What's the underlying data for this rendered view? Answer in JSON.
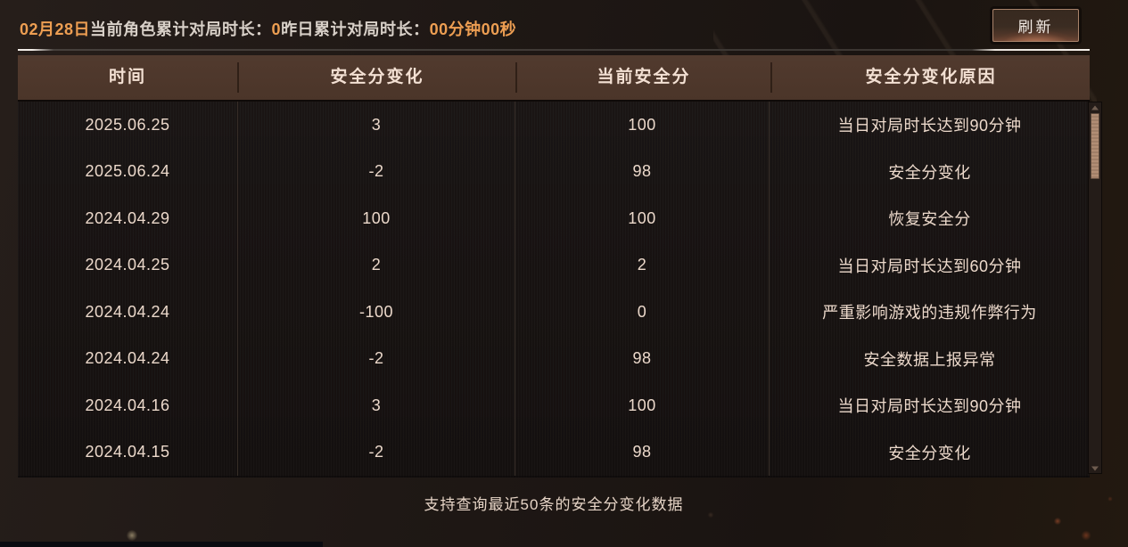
{
  "top_bar": {
    "date_label": "02月28日",
    "today_label": "当前角色累计对局时长：",
    "today_value": "0",
    "yesterday_label": "昨日累计对局时长：",
    "yesterday_value": "00分钟00秒",
    "refresh_label": "刷新"
  },
  "table": {
    "columns": [
      "时间",
      "安全分变化",
      "当前安全分",
      "安全分变化原因"
    ],
    "rows": [
      {
        "time": "2025.06.25",
        "change": "3",
        "score": "100",
        "reason": "当日对局时长达到90分钟"
      },
      {
        "time": "2025.06.24",
        "change": "-2",
        "score": "98",
        "reason": "安全分变化"
      },
      {
        "time": "2024.04.29",
        "change": "100",
        "score": "100",
        "reason": "恢复安全分"
      },
      {
        "time": "2024.04.25",
        "change": "2",
        "score": "2",
        "reason": "当日对局时长达到60分钟"
      },
      {
        "time": "2024.04.24",
        "change": "-100",
        "score": "0",
        "reason": "严重影响游戏的违规作弊行为"
      },
      {
        "time": "2024.04.24",
        "change": "-2",
        "score": "98",
        "reason": "安全数据上报异常"
      },
      {
        "time": "2024.04.16",
        "change": "3",
        "score": "100",
        "reason": "当日对局时长达到90分钟"
      },
      {
        "time": "2024.04.15",
        "change": "-2",
        "score": "98",
        "reason": "安全分变化"
      }
    ]
  },
  "footer": {
    "note": "支持查询最近50条的安全分变化数据"
  },
  "colors": {
    "accent_orange": "#ed9e52",
    "header_bg": "#4d372c",
    "body_bg": "#161110",
    "cell_text": "#ecd9cb",
    "scrollbar_thumb": "#a8866e"
  }
}
